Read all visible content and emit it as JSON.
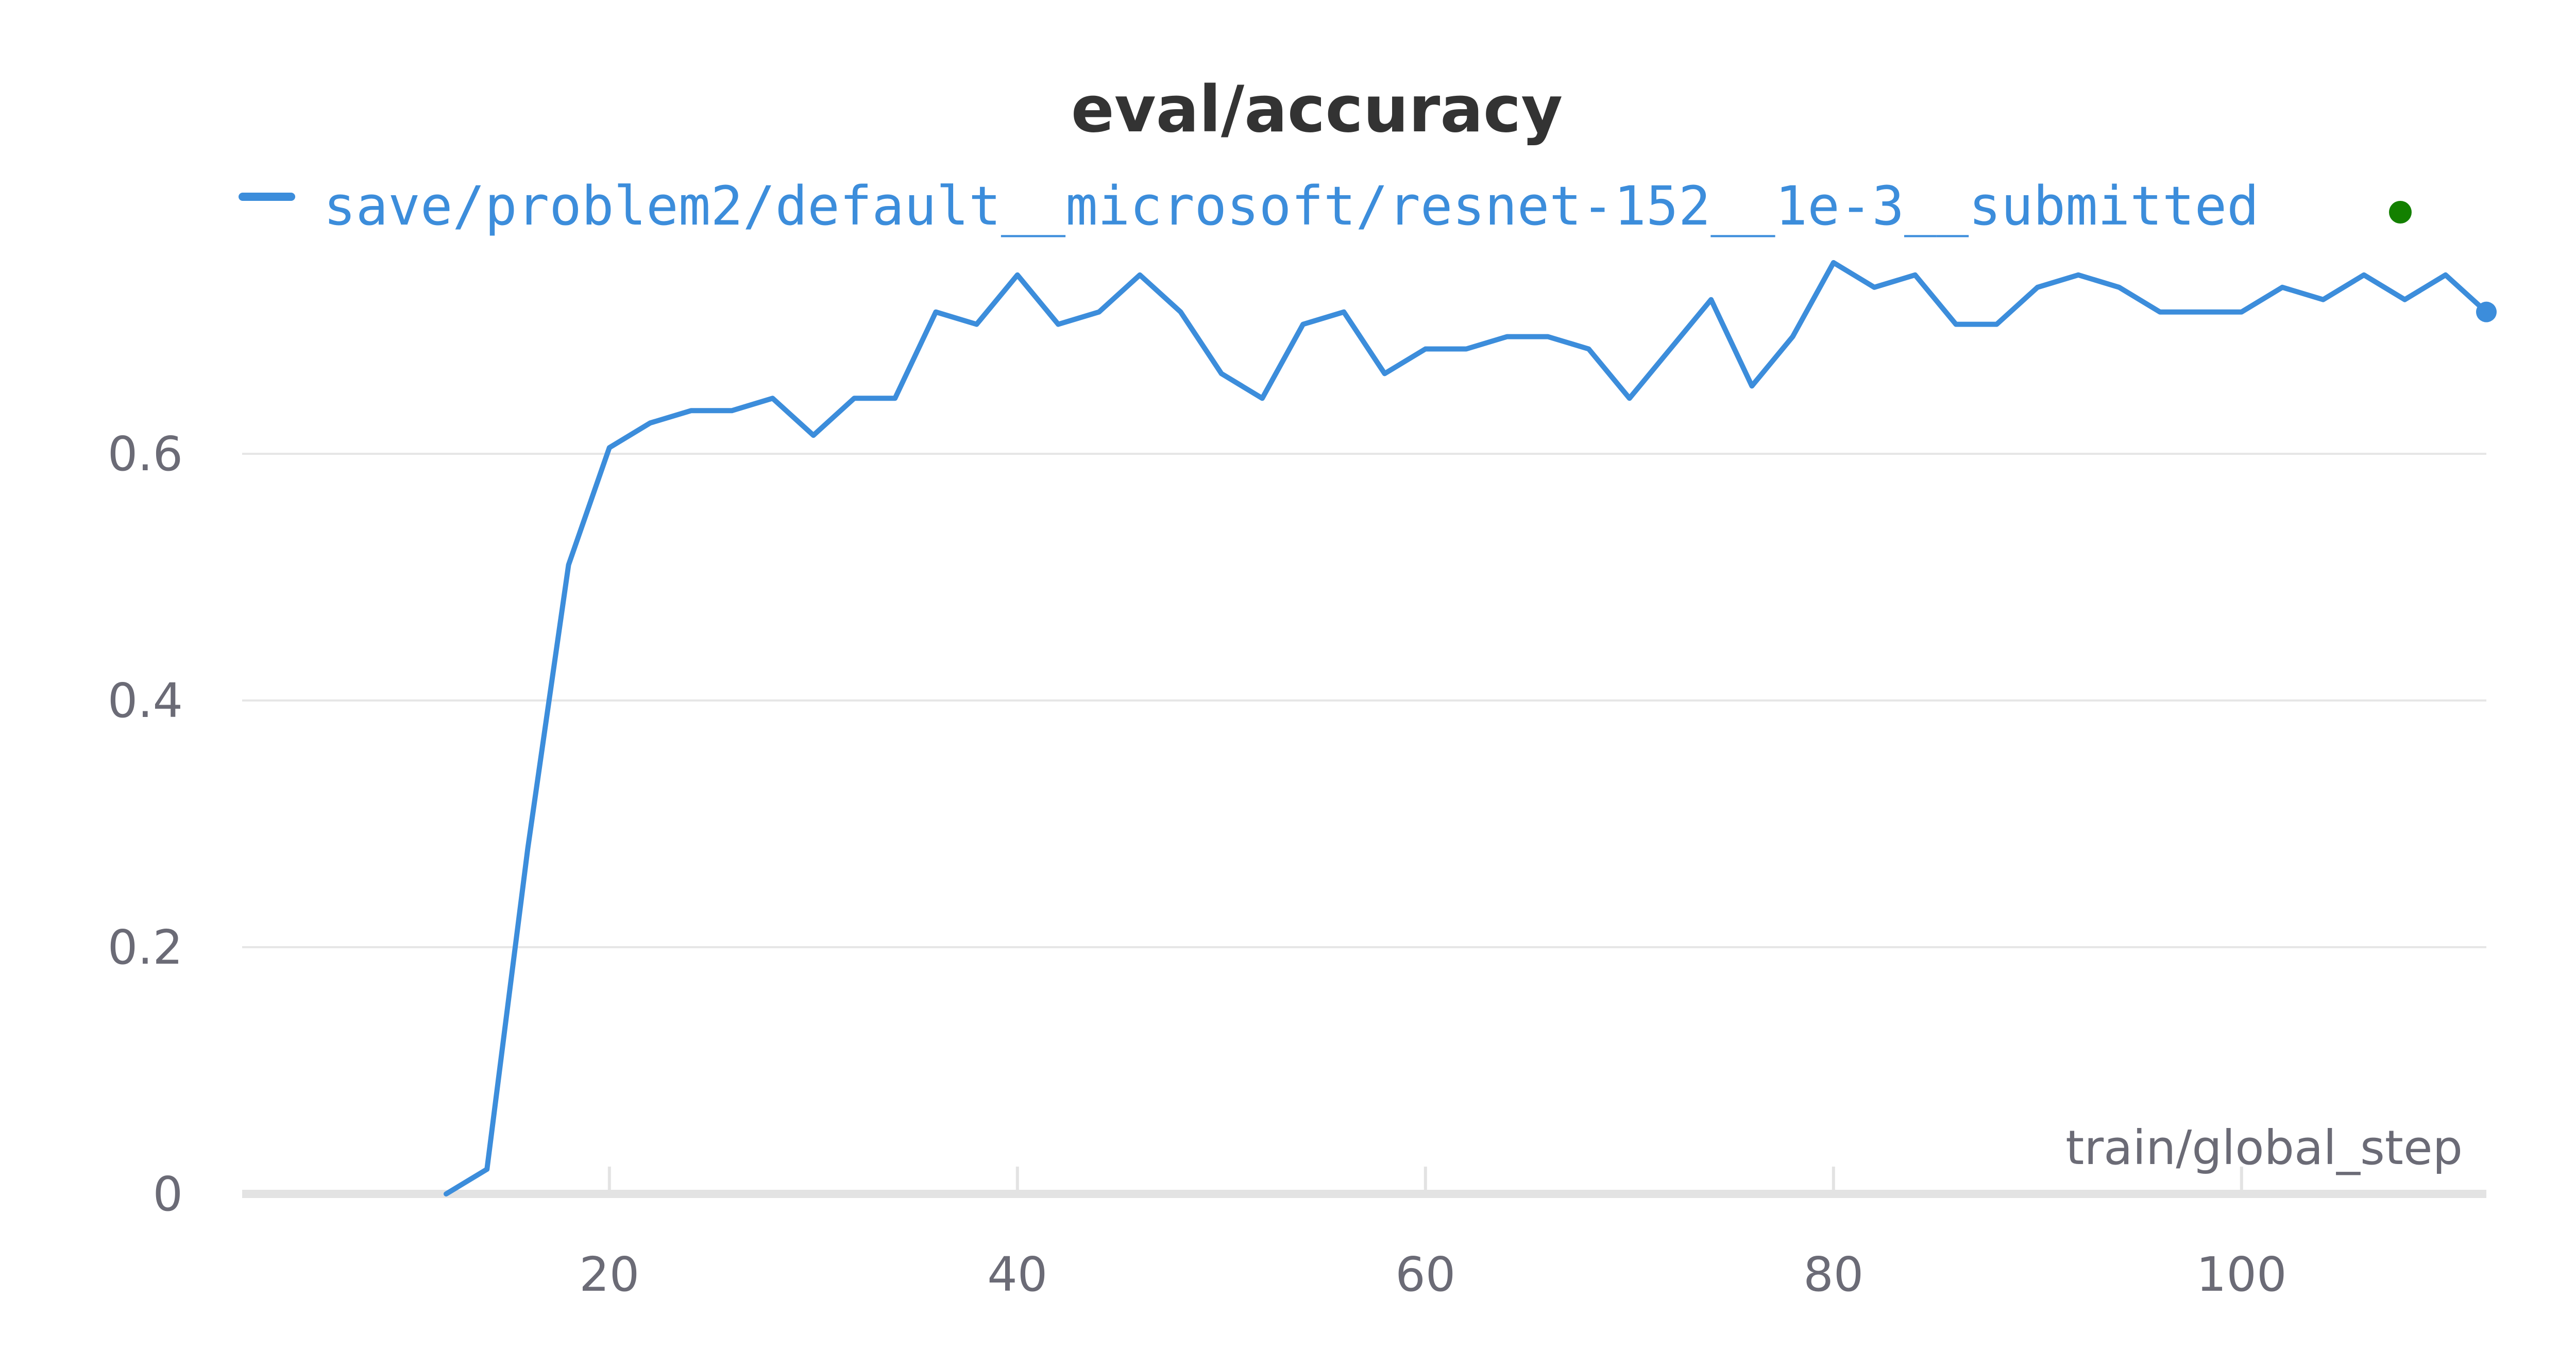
{
  "chart_data": {
    "type": "line",
    "title": "eval/accuracy",
    "xlabel": "train/global_step",
    "ylabel": "",
    "xlim": [
      2,
      112
    ],
    "ylim": [
      0,
      0.78
    ],
    "xticks": [
      20,
      40,
      60,
      80,
      100
    ],
    "yticks": [
      0,
      0.2,
      0.4,
      0.6
    ],
    "grid": true,
    "legend_position": "top",
    "series": [
      {
        "name": "save/problem2/default__microsoft/resnet-152__1e-3__submitted",
        "color": "#3c8ddb",
        "x": [
          12,
          14,
          16,
          18,
          20,
          22,
          24,
          26,
          28,
          30,
          32,
          34,
          36,
          38,
          40,
          42,
          44,
          46,
          48,
          50,
          52,
          54,
          56,
          58,
          60,
          62,
          64,
          66,
          68,
          70,
          72,
          74,
          76,
          78,
          80,
          82,
          84,
          86,
          88,
          90,
          92,
          94,
          96,
          98,
          100,
          102,
          104,
          106,
          108,
          110,
          112
        ],
        "y": [
          0.0,
          0.02,
          0.28,
          0.51,
          0.605,
          0.625,
          0.635,
          0.635,
          0.645,
          0.615,
          0.645,
          0.645,
          0.715,
          0.705,
          0.745,
          0.705,
          0.715,
          0.745,
          0.715,
          0.665,
          0.645,
          0.705,
          0.715,
          0.665,
          0.685,
          0.685,
          0.695,
          0.695,
          0.685,
          0.645,
          0.685,
          0.725,
          0.655,
          0.695,
          0.755,
          0.735,
          0.745,
          0.705,
          0.705,
          0.735,
          0.745,
          0.735,
          0.715,
          0.715,
          0.715,
          0.735,
          0.725,
          0.745,
          0.725,
          0.745,
          0.715
        ]
      }
    ],
    "status_dot_color": "#138000"
  }
}
